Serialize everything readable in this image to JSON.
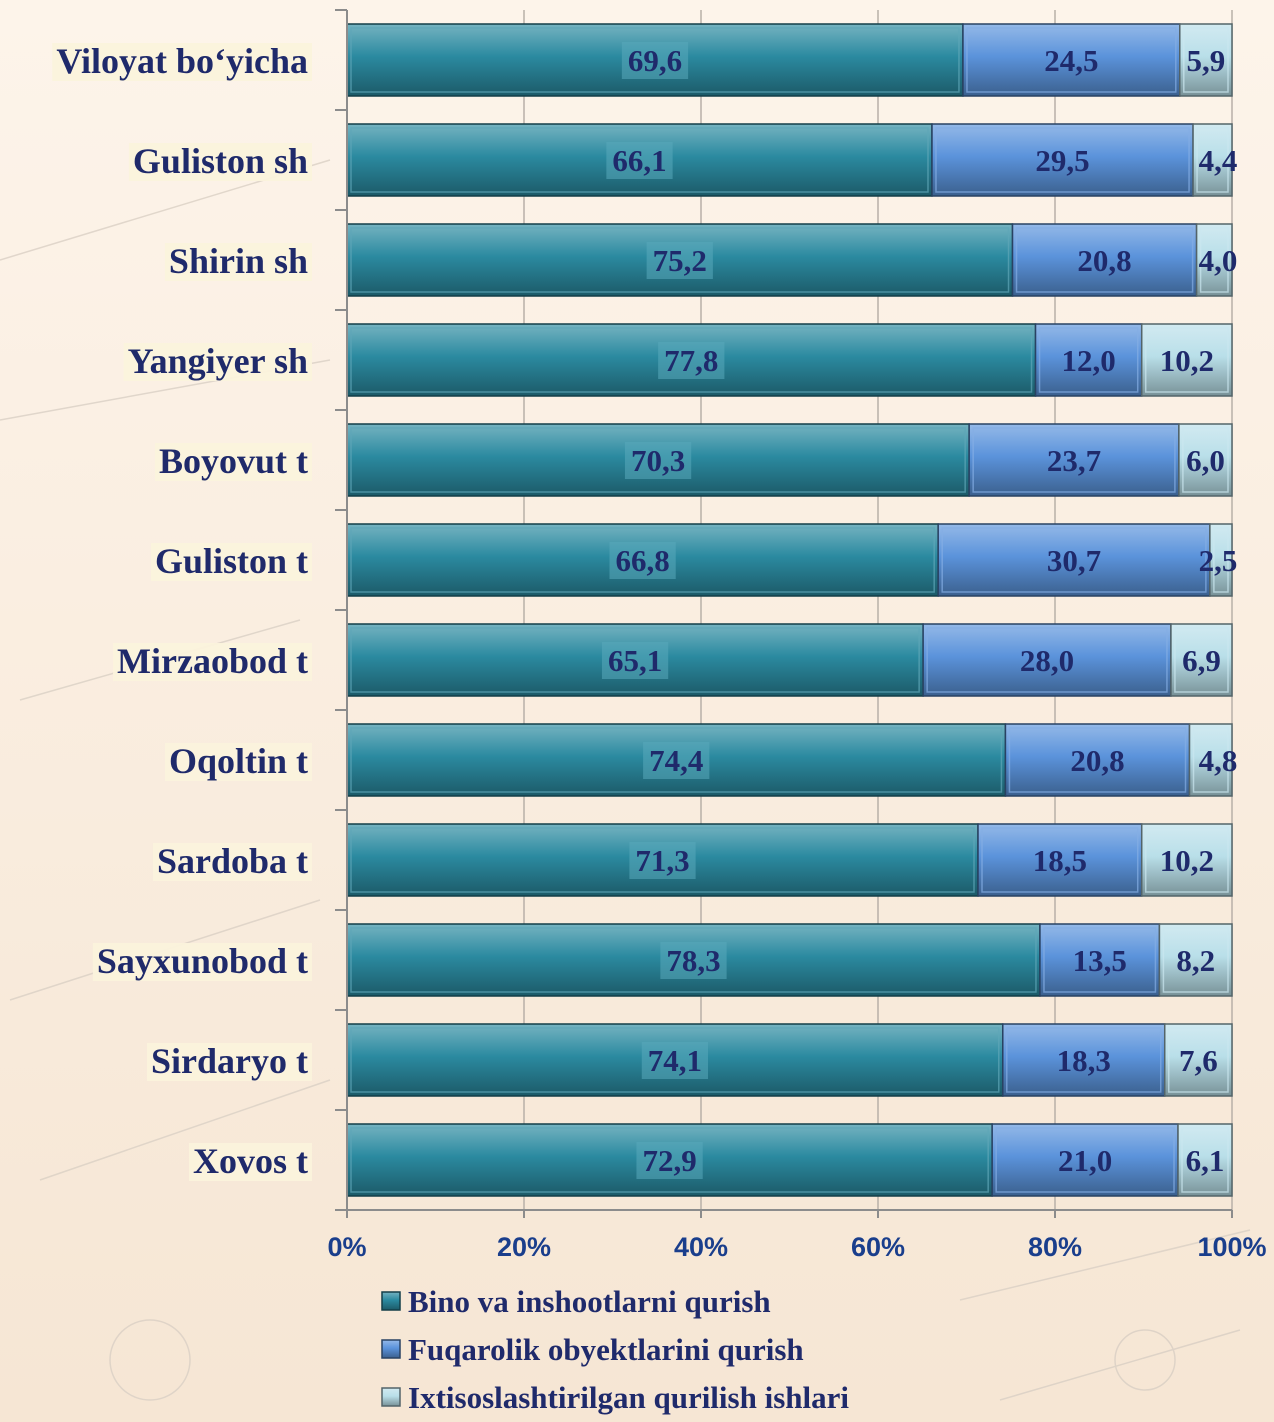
{
  "chart_data": {
    "type": "bar",
    "orientation": "horizontal",
    "stacked": "percent",
    "categories": [
      "Viloyat bo‘yicha",
      "Guliston sh",
      "Shirin sh",
      "Yangiyer sh",
      "Boyovut t",
      "Guliston t",
      "Mirzaobod t",
      "Oqoltin t",
      "Sardoba t",
      "Sayxunobod t",
      "Sirdaryo t",
      "Xovos t"
    ],
    "series": [
      {
        "name": "Bino va inshootlarni qurish",
        "color": "#2b8aa0",
        "values": [
          69.6,
          66.1,
          75.2,
          77.8,
          70.3,
          66.8,
          65.1,
          74.4,
          71.3,
          78.3,
          74.1,
          72.9
        ],
        "labels": [
          "69,6",
          "66,1",
          "75,2",
          "77,8",
          "70,3",
          "66,8",
          "65,1",
          "74,4",
          "71,3",
          "78,3",
          "74,1",
          "72,9"
        ]
      },
      {
        "name": "Fuqarolik obyektlarini qurish",
        "color": "#5b93db",
        "values": [
          24.5,
          29.5,
          20.8,
          12.0,
          23.7,
          30.7,
          28.0,
          20.8,
          18.5,
          13.5,
          18.3,
          21.0
        ],
        "labels": [
          "24,5",
          "29,5",
          "20,8",
          "12,0",
          "23,7",
          "30,7",
          "28,0",
          "20,8",
          "18,5",
          "13,5",
          "18,3",
          "21,0"
        ]
      },
      {
        "name": "Ixtisoslashtirilgan qurilish ishlari",
        "color": "#b9dfe9",
        "values": [
          5.9,
          4.4,
          4.0,
          10.2,
          6.0,
          2.5,
          6.9,
          4.8,
          10.2,
          8.2,
          7.6,
          6.1
        ],
        "labels": [
          "5,9",
          "4,4",
          "4,0",
          "10,2",
          "6,0",
          "2,5",
          "6,9",
          "4,8",
          "10,2",
          "8,2",
          "7,6",
          "6,1"
        ]
      }
    ],
    "xticks": [
      "0%",
      "20%",
      "40%",
      "60%",
      "80%",
      "100%"
    ],
    "xlim": [
      0,
      100
    ],
    "grid": true,
    "legend": "bottom"
  }
}
